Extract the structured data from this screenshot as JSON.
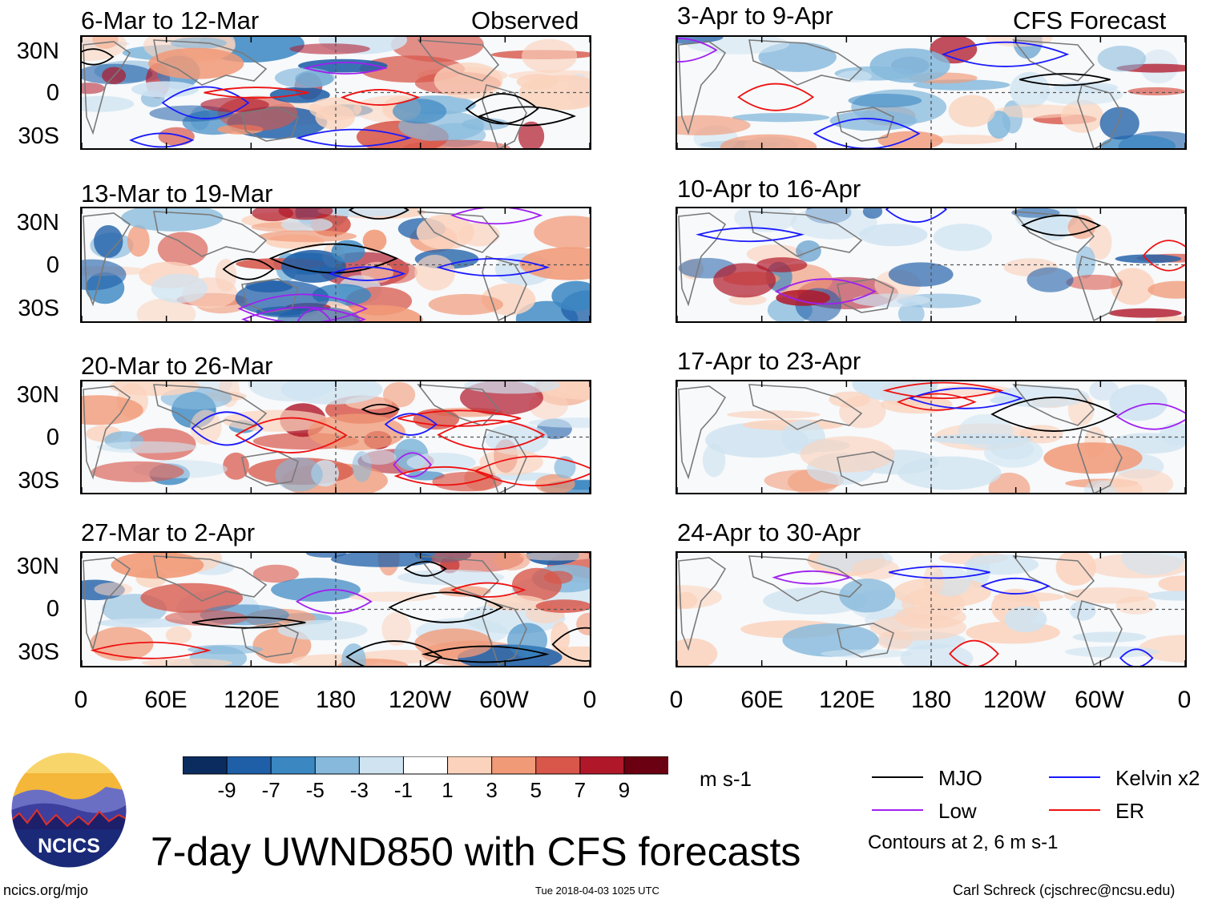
{
  "header": {
    "left_label": "Observed",
    "right_label": "CFS Forecast"
  },
  "observed_panels": [
    {
      "title": "6-Mar to 12-Mar"
    },
    {
      "title": "13-Mar to 19-Mar"
    },
    {
      "title": "20-Mar to 26-Mar"
    },
    {
      "title": "27-Mar to 2-Apr"
    }
  ],
  "forecast_panels": [
    {
      "title": "3-Apr to 9-Apr"
    },
    {
      "title": "10-Apr to 16-Apr"
    },
    {
      "title": "17-Apr to 23-Apr"
    },
    {
      "title": "24-Apr to 30-Apr"
    }
  ],
  "axis": {
    "lat_labels": [
      "30N",
      "0",
      "30S"
    ],
    "lon_labels": [
      "0",
      "60E",
      "120E",
      "180",
      "120W",
      "60W",
      "0"
    ]
  },
  "colorbar": {
    "ticks": [
      "-9",
      "-7",
      "-5",
      "-3",
      "-1",
      "1",
      "3",
      "5",
      "7",
      "9"
    ],
    "colors": [
      "#0b2c5e",
      "#1f5fa8",
      "#3a87c2",
      "#86b9dc",
      "#cfe3f1",
      "#ffffff",
      "#fbd3bd",
      "#f19a78",
      "#d8574a",
      "#b0182a",
      "#6a0011"
    ],
    "units": "m s-1"
  },
  "legend": {
    "items": [
      {
        "label": "MJO",
        "color": "#000000"
      },
      {
        "label": "Kelvin x2",
        "color": "#1a1aff"
      },
      {
        "label": "Low",
        "color": "#a020f0"
      },
      {
        "label": "ER",
        "color": "#ee1111"
      }
    ],
    "note": "Contours at 2, 6 m s-1"
  },
  "main_title": "7-day UWND850 with CFS forecasts",
  "logo": {
    "text": "NCICS"
  },
  "footer": {
    "left": "ncics.org/mjo",
    "center": "Tue 2018-04-03 1025 UTC",
    "right": "Carl Schreck (cjschrec@ncsu.edu)"
  }
}
